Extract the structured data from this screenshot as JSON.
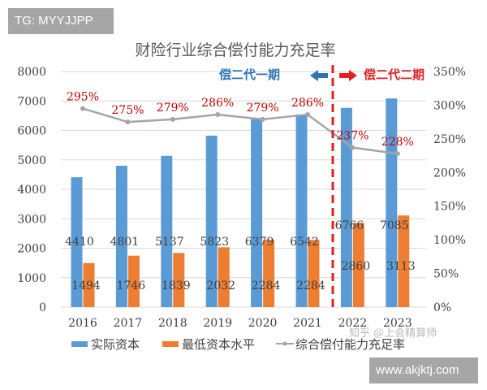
{
  "watermarks": {
    "top_left": "TG: MYYJJPP",
    "bottom_right": "www.akjktj.com",
    "source": "知乎 @上会精算师"
  },
  "chart_data": {
    "type": "bar",
    "title": "财险行业综合偿付能力充足率",
    "categories": [
      "2016",
      "2017",
      "2018",
      "2019",
      "2020",
      "2021",
      "2022",
      "2023"
    ],
    "series": [
      {
        "name": "实际资本",
        "type": "bar",
        "axis": "left",
        "color": "#5b9bd5",
        "values": [
          4410,
          4801,
          5137,
          5823,
          6379,
          6542,
          6766,
          7085
        ]
      },
      {
        "name": "最低资本水平",
        "type": "bar",
        "axis": "left",
        "color": "#ed7d31",
        "values": [
          1494,
          1746,
          1839,
          2032,
          2284,
          2284,
          2860,
          3113
        ]
      },
      {
        "name": "综合偿付能力充足率",
        "type": "line",
        "axis": "right",
        "color": "#a5a5a5",
        "values": [
          295,
          275,
          279,
          286,
          279,
          286,
          237,
          228
        ],
        "labels": [
          "295%",
          "275%",
          "279%",
          "286%",
          "279%",
          "286%",
          "237%",
          "228%"
        ]
      }
    ],
    "y_left": {
      "range": [
        0,
        8000
      ],
      "ticks": [
        "0",
        "1000",
        "2000",
        "3000",
        "4000",
        "5000",
        "6000",
        "7000",
        "8000"
      ]
    },
    "y_right": {
      "range": [
        0,
        350
      ],
      "ticks": [
        "0%",
        "50%",
        "100%",
        "150%",
        "200%",
        "250%",
        "300%",
        "350%"
      ]
    },
    "grid": true,
    "legend": "bottom",
    "annotations": {
      "phase1": "偿二代一期",
      "phase2": "偿二代二期",
      "phase1_color": "#2e75b6",
      "phase2_color": "#e02020",
      "divider_between": [
        "2021",
        "2022"
      ]
    }
  }
}
